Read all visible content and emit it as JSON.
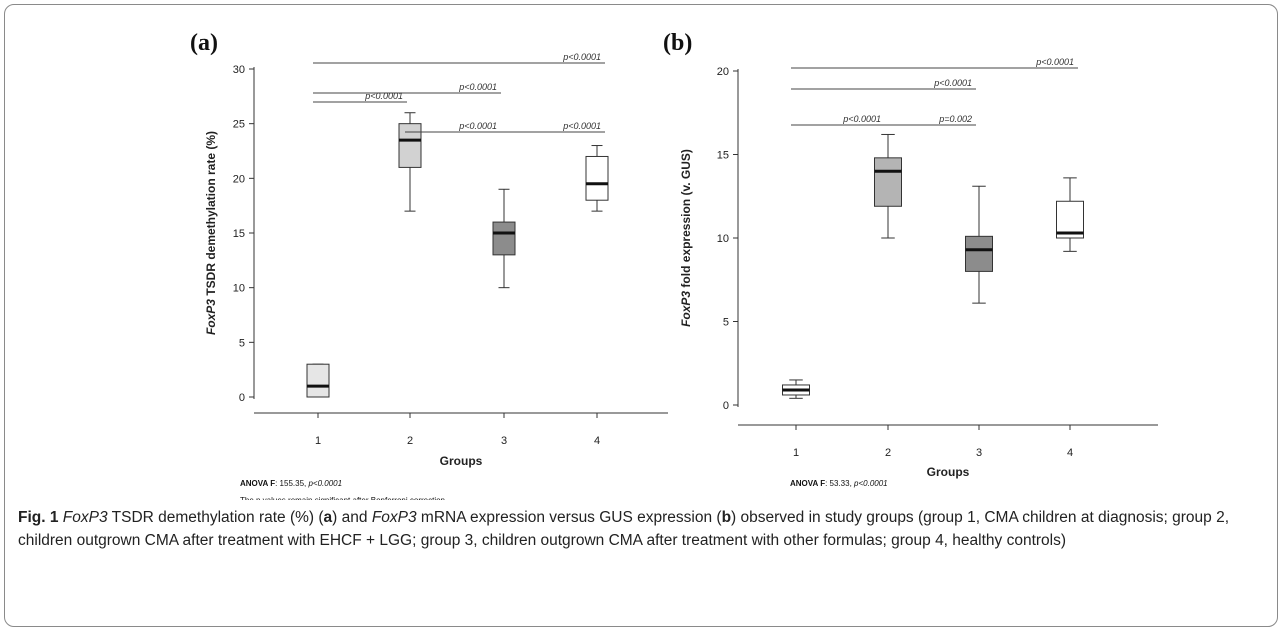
{
  "chart_data": [
    {
      "type": "boxplot",
      "panel_label": "(a)",
      "title": "",
      "xlabel": "Groups",
      "ylabel_italic": "FoxP3",
      "ylabel_rest": " TSDR demethylation rate (%)",
      "ylim": [
        0,
        30
      ],
      "yticks": [
        0,
        5,
        10,
        15,
        20,
        25,
        30
      ],
      "categories": [
        "1",
        "2",
        "3",
        "4"
      ],
      "boxes": [
        {
          "group": "1",
          "whisker_low": 0,
          "q1": 0,
          "median": 1,
          "q3": 3,
          "whisker_high": 3,
          "fill": "#e6e6e6"
        },
        {
          "group": "2",
          "whisker_low": 17,
          "q1": 21,
          "median": 23.5,
          "q3": 25,
          "whisker_high": 26,
          "fill": "#d2d2d2"
        },
        {
          "group": "3",
          "whisker_low": 10,
          "q1": 13,
          "median": 15,
          "q3": 16,
          "whisker_high": 19,
          "fill": "#8c8c8c"
        },
        {
          "group": "4",
          "whisker_low": 17,
          "q1": 18,
          "median": 19.5,
          "q3": 22,
          "whisker_high": 23,
          "fill": "#ffffff"
        }
      ],
      "comparisons": [
        {
          "from": "1",
          "to": "4",
          "label": "p<0.0001"
        },
        {
          "from": "1",
          "to": "3",
          "label": "p<0.0001"
        },
        {
          "from": "1",
          "to": "2",
          "label": "p<0.0001"
        },
        {
          "from": "2",
          "to": "3",
          "label": "p<0.0001"
        },
        {
          "from": "3",
          "to": "4",
          "label": "p<0.0001"
        }
      ],
      "note_bold": "ANOVA F",
      "note_text": ": 155.35, ",
      "note_italic": "p<0.0001",
      "note2": "The p values remain significant after Bonferroni correction"
    },
    {
      "type": "boxplot",
      "panel_label": "(b)",
      "title": "",
      "xlabel": "Groups",
      "ylabel_italic": "FoxP3",
      "ylabel_rest": " fold expression (v. GUS)",
      "ylim": [
        0,
        20
      ],
      "yticks": [
        0,
        5,
        10,
        15,
        20
      ],
      "categories": [
        "1",
        "2",
        "3",
        "4"
      ],
      "boxes": [
        {
          "group": "1",
          "whisker_low": 0.4,
          "q1": 0.6,
          "median": 0.9,
          "q3": 1.2,
          "whisker_high": 1.5,
          "fill": "#ffffff"
        },
        {
          "group": "2",
          "whisker_low": 10,
          "q1": 11.9,
          "median": 14,
          "q3": 14.8,
          "whisker_high": 16.2,
          "fill": "#b4b4b4"
        },
        {
          "group": "3",
          "whisker_low": 6.1,
          "q1": 8,
          "median": 9.3,
          "q3": 10.1,
          "whisker_high": 13.1,
          "fill": "#8c8c8c"
        },
        {
          "group": "4",
          "whisker_low": 9.2,
          "q1": 10,
          "median": 10.3,
          "q3": 12.2,
          "whisker_high": 13.6,
          "fill": "#ffffff"
        }
      ],
      "comparisons": [
        {
          "from": "1",
          "to": "4",
          "label": "p<0.0001"
        },
        {
          "from": "1",
          "to": "3",
          "label": "p<0.0001"
        },
        {
          "from": "1",
          "to": "2",
          "label": "p<0.0001"
        },
        {
          "from": "2",
          "to": "3",
          "label": "p=0.002"
        }
      ],
      "note_bold": "ANOVA F",
      "note_text": ": 53.33, ",
      "note_italic": "p<0.0001"
    }
  ],
  "caption": {
    "fig": "Fig. 1",
    "t1": "FoxP3",
    "t2": " TSDR demethylation rate (%) (",
    "t3": "a",
    "t4": ") and ",
    "t5": "FoxP3",
    "t6": " mRNA expression versus GUS expression (",
    "t7": "b",
    "t8": ") observed in study groups (group 1, CMA children at diagnosis; group 2, children outgrown CMA after treatment with EHCF + LGG; group 3, children outgrown CMA after treatment with other formulas; group 4, healthy controls)"
  }
}
